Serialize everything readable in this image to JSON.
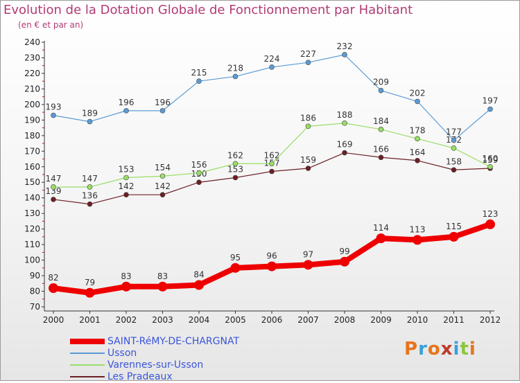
{
  "header": {
    "title": "Evolution de la Dotation Globale de Fonctionnement par Habitant",
    "subtitle": "(en € et par an)"
  },
  "logo": {
    "text": "Proxiti",
    "colors": [
      "#e8731a",
      "#3aa0d8",
      "#e8731a",
      "#c0392b",
      "#3aa0d8",
      "#8cc63f",
      "#e8731a"
    ]
  },
  "chart_data": {
    "type": "line",
    "title": "Evolution de la Dotation Globale de Fonctionnement par Habitant",
    "subtitle": "(en € et par an)",
    "x": [
      "2000",
      "2001",
      "2002",
      "2003",
      "2004",
      "2005",
      "2006",
      "2007",
      "2008",
      "2009",
      "2010",
      "2011",
      "2012"
    ],
    "ylim": [
      70,
      240
    ],
    "yticks": [
      70,
      80,
      90,
      100,
      110,
      120,
      130,
      140,
      150,
      160,
      170,
      180,
      190,
      200,
      210,
      220,
      230,
      240
    ],
    "grid": false,
    "legend_position": "bottom-left",
    "series": [
      {
        "name": "SAINT-RéMY-DE-CHARGNAT",
        "color": "#ee0000",
        "values": [
          82,
          79,
          83,
          83,
          84,
          95,
          96,
          97,
          99,
          114,
          113,
          115,
          123
        ]
      },
      {
        "name": "Usson",
        "color": "#5b9bd5",
        "values": [
          193,
          189,
          196,
          196,
          215,
          218,
          224,
          227,
          232,
          209,
          202,
          177,
          197
        ]
      },
      {
        "name": "Varennes-sur-Usson",
        "color": "#99dd66",
        "values": [
          147,
          147,
          153,
          154,
          156,
          162,
          162,
          186,
          188,
          184,
          178,
          172,
          160
        ]
      },
      {
        "name": "Les Pradeaux",
        "color": "#6b1f25",
        "values": [
          139,
          136,
          142,
          142,
          150,
          153,
          157,
          159,
          169,
          166,
          164,
          158,
          159
        ]
      }
    ]
  }
}
